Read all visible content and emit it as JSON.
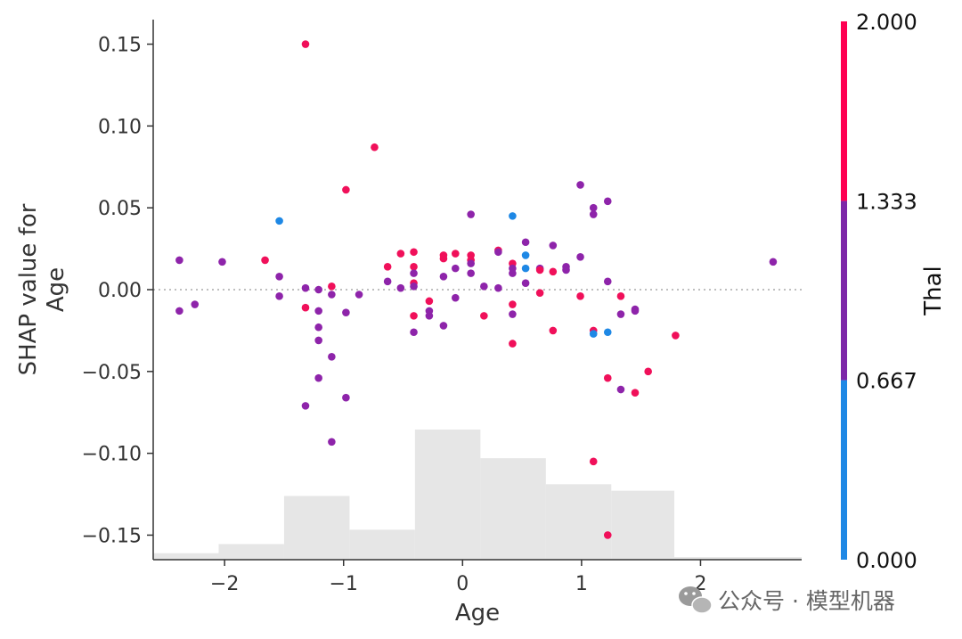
{
  "chart_data": {
    "type": "scatter",
    "title": "",
    "xlabel": "Age",
    "ylabel_lines": [
      "SHAP value for",
      "Age"
    ],
    "xlim": [
      -2.6,
      2.85
    ],
    "ylim": [
      -0.165,
      0.165
    ],
    "xticks": [
      -2,
      -1,
      0,
      1,
      2
    ],
    "xtick_labels": [
      "−2",
      "−1",
      "0",
      "1",
      "2"
    ],
    "yticks": [
      0.15,
      0.1,
      0.05,
      0.0,
      -0.05,
      -0.1,
      -0.15
    ],
    "ytick_labels": [
      "0.15",
      "0.10",
      "0.05",
      "0.00",
      "−0.05",
      "−0.10",
      "−0.15"
    ],
    "zero_line": true,
    "grid": false,
    "histogram": {
      "description": "feature distribution (relative heights)",
      "bins": [
        {
          "x0": -2.6,
          "x1": -2.05,
          "h": 0.05
        },
        {
          "x0": -2.05,
          "x1": -1.5,
          "h": 0.12
        },
        {
          "x0": -1.5,
          "x1": -0.95,
          "h": 0.49
        },
        {
          "x0": -0.95,
          "x1": -0.4,
          "h": 0.23
        },
        {
          "x0": -0.4,
          "x1": 0.15,
          "h": 1.0
        },
        {
          "x0": 0.15,
          "x1": 0.7,
          "h": 0.78
        },
        {
          "x0": 0.7,
          "x1": 1.25,
          "h": 0.58
        },
        {
          "x0": 1.25,
          "x1": 1.78,
          "h": 0.53
        },
        {
          "x0": 1.78,
          "x1": 2.85,
          "h": 0.02
        }
      ]
    },
    "colorbar": {
      "title": "Thal",
      "labels": [
        "2.000",
        "1.333",
        "0.667",
        "0.000"
      ],
      "bands": [
        {
          "from": 0.0,
          "to": 0.667,
          "color": "#1e88e5"
        },
        {
          "from": 0.667,
          "to": 1.333,
          "color": "#7d27a8"
        },
        {
          "from": 1.333,
          "to": 2.0,
          "color": "#ff0052"
        }
      ]
    },
    "colors": {
      "0": "#1e88e5",
      "1": "#8e24aa",
      "2": "#f0105a"
    },
    "points": [
      {
        "x": -2.38,
        "y": 0.018,
        "c": 1
      },
      {
        "x": -2.38,
        "y": -0.013,
        "c": 1
      },
      {
        "x": -2.25,
        "y": -0.009,
        "c": 1
      },
      {
        "x": -2.02,
        "y": 0.017,
        "c": 1
      },
      {
        "x": -1.66,
        "y": 0.018,
        "c": 2
      },
      {
        "x": -1.54,
        "y": 0.042,
        "c": 0
      },
      {
        "x": -1.54,
        "y": 0.008,
        "c": 1
      },
      {
        "x": -1.54,
        "y": -0.004,
        "c": 1
      },
      {
        "x": -1.32,
        "y": 0.15,
        "c": 2
      },
      {
        "x": -1.32,
        "y": 0.001,
        "c": 1
      },
      {
        "x": -1.32,
        "y": -0.011,
        "c": 2
      },
      {
        "x": -1.32,
        "y": -0.071,
        "c": 1
      },
      {
        "x": -1.21,
        "y": 0.0,
        "c": 1
      },
      {
        "x": -1.21,
        "y": -0.013,
        "c": 1
      },
      {
        "x": -1.21,
        "y": -0.023,
        "c": 1
      },
      {
        "x": -1.21,
        "y": -0.031,
        "c": 1
      },
      {
        "x": -1.21,
        "y": -0.054,
        "c": 1
      },
      {
        "x": -1.1,
        "y": 0.002,
        "c": 2
      },
      {
        "x": -1.1,
        "y": -0.003,
        "c": 1
      },
      {
        "x": -1.1,
        "y": -0.041,
        "c": 1
      },
      {
        "x": -1.1,
        "y": -0.093,
        "c": 1
      },
      {
        "x": -0.98,
        "y": 0.061,
        "c": 2
      },
      {
        "x": -0.98,
        "y": -0.014,
        "c": 1
      },
      {
        "x": -0.98,
        "y": -0.066,
        "c": 1
      },
      {
        "x": -0.87,
        "y": -0.003,
        "c": 1
      },
      {
        "x": -0.74,
        "y": 0.087,
        "c": 2
      },
      {
        "x": -0.63,
        "y": 0.014,
        "c": 2
      },
      {
        "x": -0.63,
        "y": 0.005,
        "c": 1
      },
      {
        "x": -0.52,
        "y": 0.022,
        "c": 2
      },
      {
        "x": -0.52,
        "y": 0.001,
        "c": 1
      },
      {
        "x": -0.41,
        "y": 0.023,
        "c": 2
      },
      {
        "x": -0.41,
        "y": 0.014,
        "c": 2
      },
      {
        "x": -0.41,
        "y": 0.01,
        "c": 1
      },
      {
        "x": -0.41,
        "y": 0.004,
        "c": 2
      },
      {
        "x": -0.41,
        "y": 0.002,
        "c": 1
      },
      {
        "x": -0.41,
        "y": -0.016,
        "c": 2
      },
      {
        "x": -0.41,
        "y": -0.026,
        "c": 1
      },
      {
        "x": -0.28,
        "y": -0.007,
        "c": 2
      },
      {
        "x": -0.28,
        "y": -0.013,
        "c": 1
      },
      {
        "x": -0.28,
        "y": -0.016,
        "c": 1
      },
      {
        "x": -0.16,
        "y": 0.021,
        "c": 2
      },
      {
        "x": -0.16,
        "y": 0.019,
        "c": 2
      },
      {
        "x": -0.16,
        "y": 0.008,
        "c": 1
      },
      {
        "x": -0.16,
        "y": -0.022,
        "c": 1
      },
      {
        "x": -0.06,
        "y": 0.022,
        "c": 2
      },
      {
        "x": -0.06,
        "y": 0.013,
        "c": 1
      },
      {
        "x": -0.06,
        "y": -0.005,
        "c": 1
      },
      {
        "x": 0.07,
        "y": 0.046,
        "c": 1
      },
      {
        "x": 0.07,
        "y": 0.021,
        "c": 2
      },
      {
        "x": 0.07,
        "y": 0.018,
        "c": 2
      },
      {
        "x": 0.07,
        "y": 0.016,
        "c": 1
      },
      {
        "x": 0.07,
        "y": 0.01,
        "c": 1
      },
      {
        "x": 0.18,
        "y": 0.002,
        "c": 1
      },
      {
        "x": 0.18,
        "y": -0.016,
        "c": 2
      },
      {
        "x": 0.3,
        "y": 0.024,
        "c": 2
      },
      {
        "x": 0.3,
        "y": 0.023,
        "c": 1
      },
      {
        "x": 0.3,
        "y": 0.001,
        "c": 1
      },
      {
        "x": 0.42,
        "y": 0.045,
        "c": 0
      },
      {
        "x": 0.42,
        "y": 0.016,
        "c": 2
      },
      {
        "x": 0.42,
        "y": 0.013,
        "c": 1
      },
      {
        "x": 0.42,
        "y": 0.01,
        "c": 1
      },
      {
        "x": 0.42,
        "y": -0.009,
        "c": 2
      },
      {
        "x": 0.42,
        "y": -0.015,
        "c": 1
      },
      {
        "x": 0.42,
        "y": -0.033,
        "c": 2
      },
      {
        "x": 0.53,
        "y": 0.029,
        "c": 1
      },
      {
        "x": 0.53,
        "y": 0.021,
        "c": 0
      },
      {
        "x": 0.53,
        "y": 0.013,
        "c": 0
      },
      {
        "x": 0.53,
        "y": 0.004,
        "c": 1
      },
      {
        "x": 0.65,
        "y": 0.013,
        "c": 1
      },
      {
        "x": 0.65,
        "y": 0.012,
        "c": 2
      },
      {
        "x": 0.65,
        "y": -0.002,
        "c": 2
      },
      {
        "x": 0.76,
        "y": 0.027,
        "c": 1
      },
      {
        "x": 0.76,
        "y": 0.011,
        "c": 2
      },
      {
        "x": 0.76,
        "y": -0.025,
        "c": 2
      },
      {
        "x": 0.87,
        "y": 0.014,
        "c": 1
      },
      {
        "x": 0.87,
        "y": 0.012,
        "c": 1
      },
      {
        "x": 0.99,
        "y": 0.064,
        "c": 1
      },
      {
        "x": 0.99,
        "y": 0.02,
        "c": 1
      },
      {
        "x": 0.99,
        "y": -0.004,
        "c": 2
      },
      {
        "x": 1.1,
        "y": 0.05,
        "c": 1
      },
      {
        "x": 1.1,
        "y": 0.046,
        "c": 1
      },
      {
        "x": 1.1,
        "y": -0.025,
        "c": 2
      },
      {
        "x": 1.1,
        "y": -0.027,
        "c": 0
      },
      {
        "x": 1.1,
        "y": -0.105,
        "c": 2
      },
      {
        "x": 1.22,
        "y": 0.054,
        "c": 1
      },
      {
        "x": 1.22,
        "y": 0.005,
        "c": 1
      },
      {
        "x": 1.22,
        "y": -0.026,
        "c": 0
      },
      {
        "x": 1.22,
        "y": -0.054,
        "c": 2
      },
      {
        "x": 1.22,
        "y": -0.15,
        "c": 2
      },
      {
        "x": 1.33,
        "y": -0.004,
        "c": 2
      },
      {
        "x": 1.33,
        "y": -0.015,
        "c": 1
      },
      {
        "x": 1.33,
        "y": -0.061,
        "c": 1
      },
      {
        "x": 1.45,
        "y": -0.012,
        "c": 1
      },
      {
        "x": 1.45,
        "y": -0.013,
        "c": 1
      },
      {
        "x": 1.45,
        "y": -0.063,
        "c": 2
      },
      {
        "x": 1.56,
        "y": -0.05,
        "c": 2
      },
      {
        "x": 1.79,
        "y": -0.028,
        "c": 2
      },
      {
        "x": 2.61,
        "y": 0.017,
        "c": 1
      }
    ]
  },
  "watermark": {
    "icon": "wechat-icon",
    "text": "公众号 · 模型机器"
  }
}
